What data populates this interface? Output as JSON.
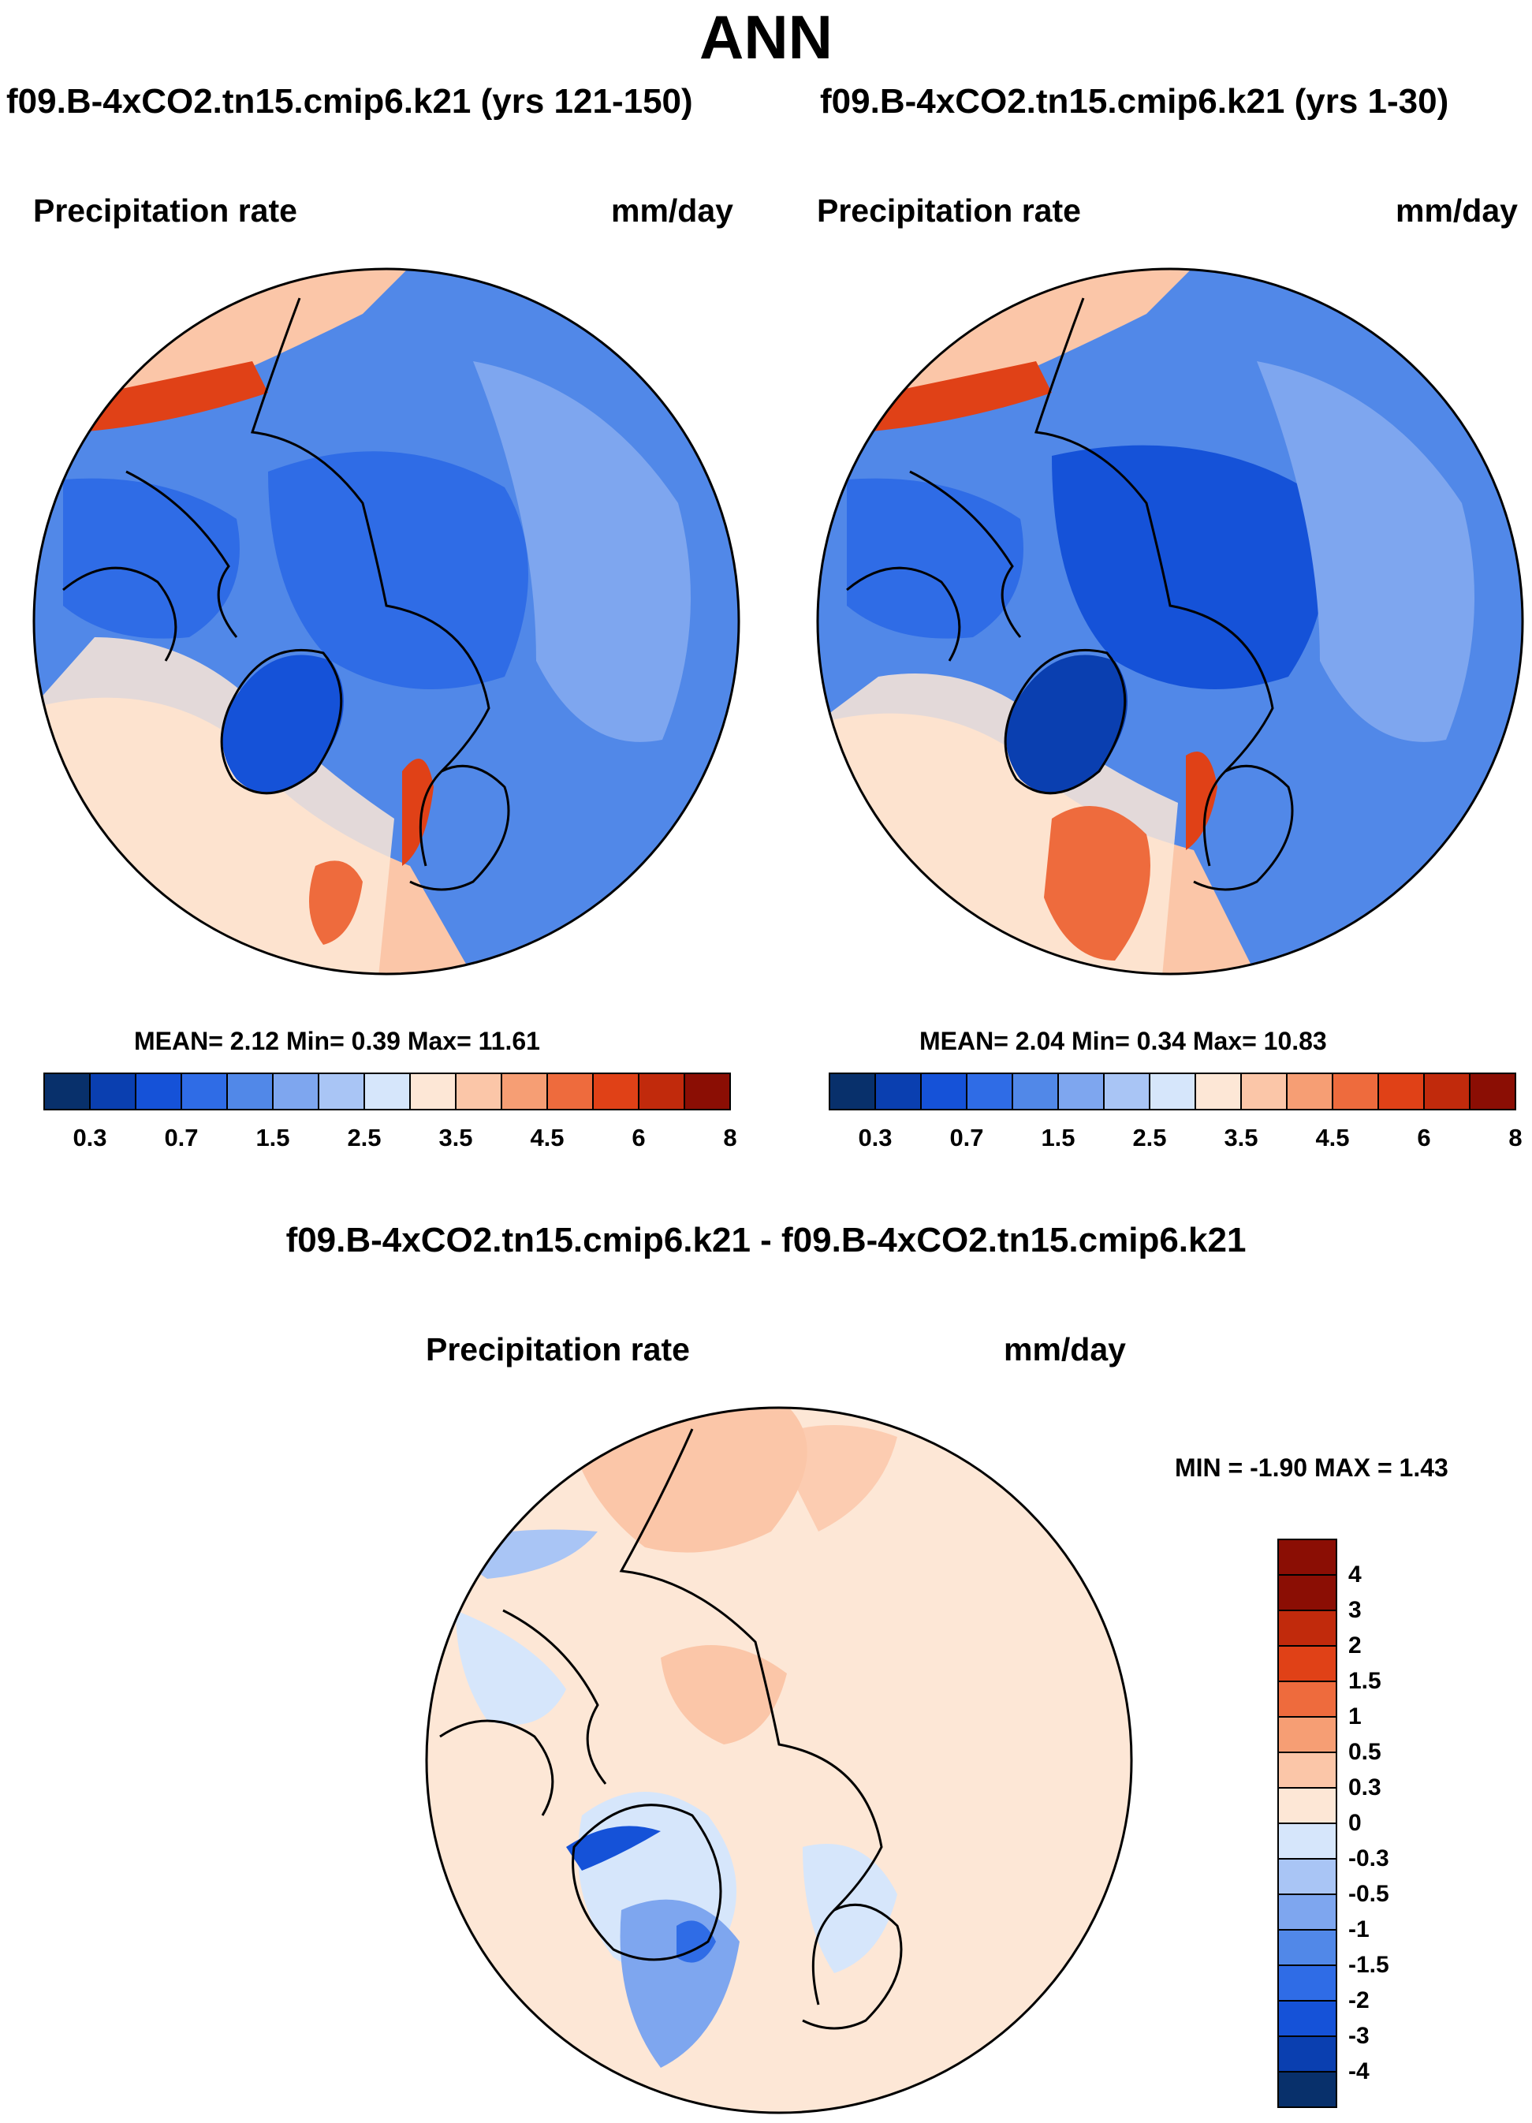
{
  "figure": {
    "title": "ANN"
  },
  "panels": [
    {
      "case_title": "f09.B-4xCO2.tn15.cmip6.k21 (yrs 121-150)",
      "variable": "Precipitation rate",
      "units": "mm/day",
      "stats": "MEAN=   2.12  Min=    0.39  Max=  11.61",
      "colorbar_labels": [
        "0.3",
        "0.7",
        "1.5",
        "2.5",
        "3.5",
        "4.5",
        "6",
        "8"
      ]
    },
    {
      "case_title": "f09.B-4xCO2.tn15.cmip6.k21 (yrs 1-30)",
      "variable": "Precipitation rate",
      "units": "mm/day",
      "stats": "MEAN=   2.04  Min=    0.34  Max=  10.83",
      "colorbar_labels": [
        "0.3",
        "0.7",
        "1.5",
        "2.5",
        "3.5",
        "4.5",
        "6",
        "8"
      ]
    }
  ],
  "difference": {
    "title": "f09.B-4xCO2.tn15.cmip6.k21 - f09.B-4xCO2.tn15.cmip6.k21",
    "variable": "Precipitation rate",
    "units": "mm/day",
    "stats": "MIN =  -1.90 MAX =    1.43",
    "colorbar_labels": [
      "4",
      "3",
      "2",
      "1.5",
      "1",
      "0.5",
      "0.3",
      "0",
      "-0.3",
      "-0.5",
      "-1",
      "-1.5",
      "-2",
      "-3",
      "-4"
    ]
  },
  "colors": {
    "precip_scale": [
      "#08306b",
      "#0a3fb0",
      "#1552d8",
      "#2f6ce6",
      "#5188e8",
      "#7ea6ef",
      "#a9c5f5",
      "#d6e6fb",
      "#fde7d6",
      "#fbc6a8",
      "#f69e74",
      "#ee6b3d",
      "#e04117",
      "#c12a0c",
      "#8b0e04"
    ],
    "diff_scale": [
      "#8b0e04",
      "#c12a0c",
      "#e04117",
      "#ee6b3d",
      "#f69e74",
      "#fbc6a8",
      "#fde7d6",
      "#d6e6fb",
      "#a9c5f5",
      "#7ea6ef",
      "#5188e8",
      "#2f6ce6",
      "#1552d8",
      "#0a3fb0",
      "#08306b"
    ],
    "land_outline": "#000000"
  }
}
